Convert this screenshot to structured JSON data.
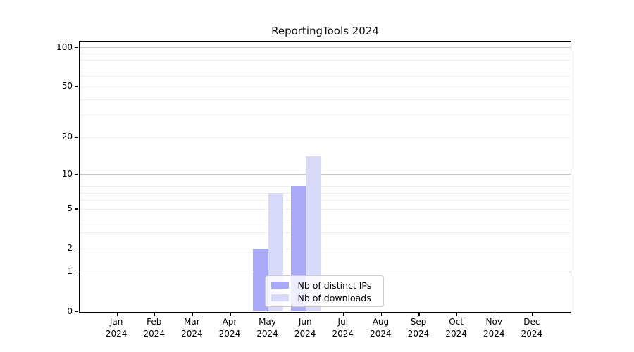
{
  "title": "ReportingTools 2024",
  "chart_data": {
    "type": "bar",
    "title": "ReportingTools 2024",
    "categories": [
      "Jan",
      "Feb",
      "Mar",
      "Apr",
      "May",
      "Jun",
      "Jul",
      "Aug",
      "Sep",
      "Oct",
      "Nov",
      "Dec"
    ],
    "category_year": "2024",
    "series": [
      {
        "name": "Nb of distinct IPs",
        "color": "#a9a9f8",
        "values": [
          0,
          0,
          0,
          0,
          2,
          8,
          0,
          0,
          0,
          0,
          0,
          0
        ]
      },
      {
        "name": "Nb of downloads",
        "color": "#d9d9f9",
        "values": [
          0,
          0,
          0,
          0,
          7,
          14,
          0,
          0,
          0,
          0,
          0,
          0
        ]
      }
    ],
    "xlabel": "",
    "ylabel": "",
    "yscale": "log1p",
    "ylim": [
      0,
      112
    ],
    "ytick_labels": [
      0,
      1,
      2,
      5,
      10,
      20,
      50,
      100
    ],
    "major_gridlines": [
      1,
      10,
      100
    ],
    "minor_gridlines": [
      2,
      3,
      4,
      5,
      6,
      7,
      8,
      9,
      20,
      30,
      40,
      50,
      60,
      70,
      80,
      90
    ],
    "grid": true,
    "legend_position": "lower center inside plot"
  },
  "colors": {
    "series_ips": "#a9a9f8",
    "series_downloads": "#d9d9f9",
    "grid_major": "#c6c6c6",
    "grid_minor": "#ededed",
    "axis": "#000000",
    "background": "#ffffff"
  }
}
